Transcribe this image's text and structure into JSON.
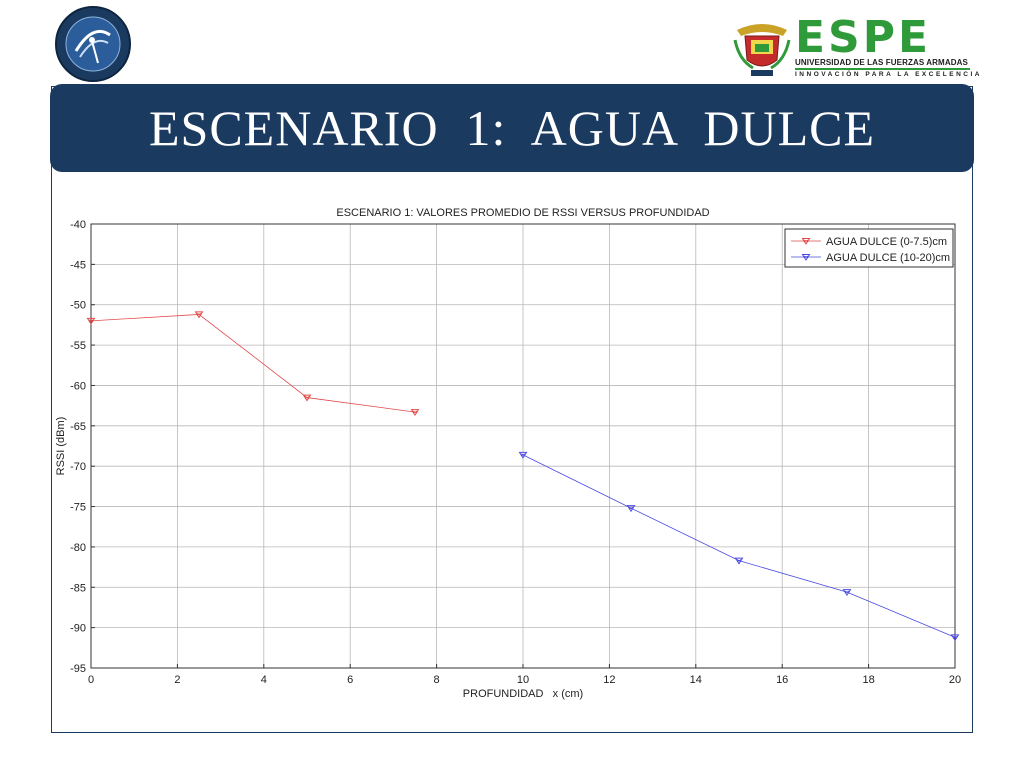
{
  "slide": {
    "title": "ESCENARIO  1:  AGUA  DULCE"
  },
  "logos": {
    "left": {
      "icon": "university-department-seal-icon",
      "color": "#1b3a60"
    },
    "right": {
      "icon": "espe-crest-icon",
      "wordmark": "ESPE",
      "subtitle": "UNIVERSIDAD DE LAS FUERZAS ARMADAS",
      "motto": "INNOVACIÓN PARA LA EXCELENCIA",
      "color": "#2f9a3a"
    }
  },
  "chart_data": {
    "type": "line",
    "title": "ESCENARIO 1: VALORES PROMEDIO DE RSSI VERSUS PROFUNDIDAD",
    "xlabel": "PROFUNDIDAD   x (cm)",
    "ylabel": "RSSI (dBm)",
    "xlim": [
      0,
      20
    ],
    "ylim": [
      -95,
      -40
    ],
    "xticks": [
      0,
      2,
      4,
      6,
      8,
      10,
      12,
      14,
      16,
      18,
      20
    ],
    "yticks": [
      -40,
      -45,
      -50,
      -55,
      -60,
      -65,
      -70,
      -75,
      -80,
      -85,
      -90,
      -95
    ],
    "grid": true,
    "legend_position": "top-right",
    "series": [
      {
        "name": "AGUA DULCE (0-7.5)cm",
        "color": "#e24a4a",
        "x": [
          0,
          2.5,
          5,
          7.5
        ],
        "y": [
          -52,
          -51.2,
          -61.5,
          -63.3
        ]
      },
      {
        "name": "AGUA DULCE (10-20)cm",
        "color": "#4a4ae2",
        "x": [
          10,
          12.5,
          15,
          17.5,
          20
        ],
        "y": [
          -68.6,
          -75.2,
          -81.7,
          -85.6,
          -91.2
        ]
      }
    ]
  }
}
